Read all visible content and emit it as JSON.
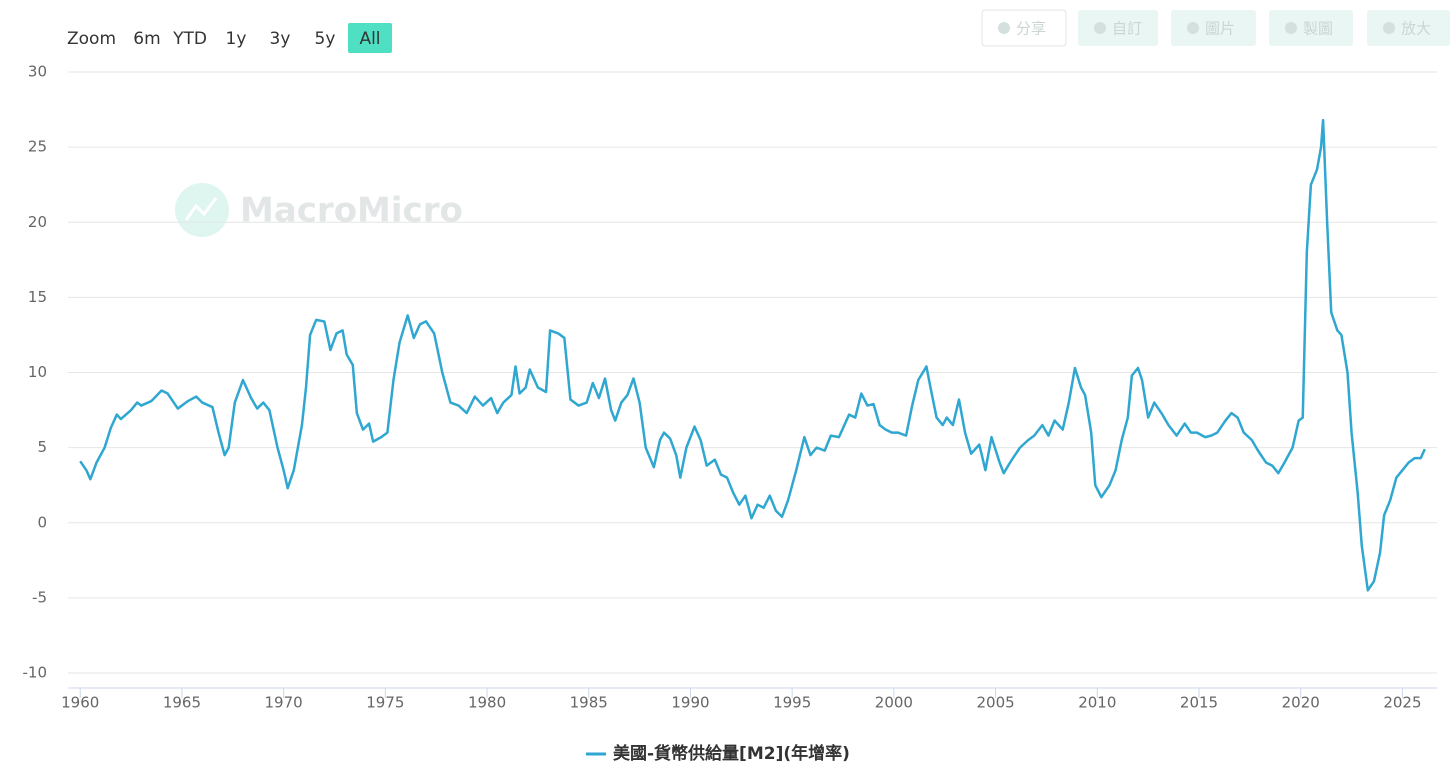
{
  "zoom": {
    "label": "Zoom",
    "buttons": [
      "6m",
      "YTD",
      "1y",
      "3y",
      "5y",
      "All"
    ],
    "selected": 5
  },
  "toolbar": [
    "分享",
    "自訂",
    "圖片",
    "製圖",
    "放大"
  ],
  "watermark": "MacroMicro",
  "chart_data": {
    "type": "line",
    "x": [
      1960.0,
      1960.3,
      1960.5,
      1960.8,
      1961.2,
      1961.5,
      1961.8,
      1962.0,
      1962.5,
      1962.8,
      1963.0,
      1963.5,
      1964.0,
      1964.3,
      1964.8,
      1965.3,
      1965.7,
      1966.0,
      1966.5,
      1966.8,
      1967.1,
      1967.3,
      1967.6,
      1968.0,
      1968.4,
      1968.7,
      1969.0,
      1969.3,
      1969.7,
      1970.0,
      1970.2,
      1970.5,
      1970.9,
      1971.1,
      1971.3,
      1971.6,
      1972.0,
      1972.3,
      1972.6,
      1972.9,
      1973.1,
      1973.4,
      1973.6,
      1973.9,
      1974.2,
      1974.4,
      1974.8,
      1975.1,
      1975.4,
      1975.7,
      1976.1,
      1976.4,
      1976.7,
      1977.0,
      1977.4,
      1977.8,
      1978.2,
      1978.6,
      1979.0,
      1979.4,
      1979.8,
      1980.2,
      1980.5,
      1980.8,
      1981.2,
      1981.4,
      1981.6,
      1981.9,
      1982.1,
      1982.5,
      1982.9,
      1983.1,
      1983.5,
      1983.8,
      1984.1,
      1984.5,
      1984.9,
      1985.2,
      1985.5,
      1985.8,
      1986.1,
      1986.3,
      1986.6,
      1986.9,
      1987.2,
      1987.5,
      1987.8,
      1988.2,
      1988.5,
      1988.7,
      1989.0,
      1989.3,
      1989.5,
      1989.8,
      1990.2,
      1990.5,
      1990.8,
      1991.2,
      1991.5,
      1991.8,
      1992.1,
      1992.4,
      1992.7,
      1993.0,
      1993.3,
      1993.6,
      1993.9,
      1994.2,
      1994.5,
      1994.8,
      1995.2,
      1995.6,
      1995.9,
      1996.2,
      1996.6,
      1996.9,
      1997.3,
      1997.8,
      1998.1,
      1998.4,
      1998.7,
      1999.0,
      1999.3,
      1999.6,
      1999.9,
      2000.2,
      2000.6,
      2000.9,
      2001.2,
      2001.6,
      2001.8,
      2002.1,
      2002.4,
      2002.6,
      2002.9,
      2003.2,
      2003.5,
      2003.8,
      2004.2,
      2004.5,
      2004.8,
      2005.2,
      2005.4,
      2005.8,
      2006.2,
      2006.6,
      2006.9,
      2007.3,
      2007.6,
      2007.9,
      2008.3,
      2008.6,
      2008.9,
      2009.2,
      2009.4,
      2009.7,
      2009.9,
      2010.2,
      2010.6,
      2010.9,
      2011.2,
      2011.5,
      2011.7,
      2012.0,
      2012.2,
      2012.5,
      2012.8,
      2013.2,
      2013.5,
      2013.9,
      2014.3,
      2014.6,
      2014.9,
      2015.3,
      2015.6,
      2015.9,
      2016.3,
      2016.6,
      2016.9,
      2017.2,
      2017.6,
      2017.9,
      2018.3,
      2018.6,
      2018.9,
      2019.2,
      2019.6,
      2019.9,
      2020.1,
      2020.3,
      2020.5,
      2020.8,
      2021.0,
      2021.1,
      2021.3,
      2021.5,
      2021.8,
      2022.0,
      2022.3,
      2022.5,
      2022.8,
      2023.0,
      2023.3,
      2023.6,
      2023.9,
      2024.1,
      2024.4,
      2024.7,
      2025.0,
      2025.3,
      2025.6,
      2025.9,
      2026.1
    ],
    "series": [
      {
        "name": "美國-貨幣供給量[M2](年增率)",
        "color": "#2fa7d0",
        "values": [
          4.1,
          3.5,
          2.9,
          4.0,
          5.0,
          6.3,
          7.2,
          6.9,
          7.5,
          8.0,
          7.8,
          8.1,
          8.8,
          8.6,
          7.6,
          8.1,
          8.4,
          8.0,
          7.7,
          6.0,
          4.5,
          5.0,
          8.0,
          9.5,
          8.3,
          7.6,
          8.0,
          7.5,
          5.0,
          3.5,
          2.3,
          3.5,
          6.5,
          9.0,
          12.5,
          13.5,
          13.4,
          11.5,
          12.6,
          12.8,
          11.2,
          10.5,
          7.3,
          6.2,
          6.6,
          5.4,
          5.7,
          6.0,
          9.5,
          12.0,
          13.8,
          12.3,
          13.2,
          13.4,
          12.6,
          10.0,
          8.0,
          7.8,
          7.3,
          8.4,
          7.8,
          8.3,
          7.3,
          8.0,
          8.5,
          10.4,
          8.6,
          9.0,
          10.2,
          9.0,
          8.7,
          12.8,
          12.6,
          12.3,
          8.2,
          7.8,
          8.0,
          9.3,
          8.3,
          9.6,
          7.5,
          6.8,
          8.0,
          8.5,
          9.6,
          8.0,
          5.0,
          3.7,
          5.5,
          6.0,
          5.6,
          4.5,
          3.0,
          5.0,
          6.4,
          5.5,
          3.8,
          4.2,
          3.2,
          3.0,
          2.0,
          1.2,
          1.8,
          0.3,
          1.2,
          1.0,
          1.8,
          0.8,
          0.4,
          1.5,
          3.5,
          5.7,
          4.5,
          5.0,
          4.8,
          5.8,
          5.7,
          7.2,
          7.0,
          8.6,
          7.8,
          7.9,
          6.5,
          6.2,
          6.0,
          6.0,
          5.8,
          7.8,
          9.5,
          10.4,
          9.0,
          7.0,
          6.5,
          7.0,
          6.5,
          8.2,
          6.0,
          4.6,
          5.2,
          3.5,
          5.7,
          4.0,
          3.3,
          4.2,
          5.0,
          5.5,
          5.8,
          6.5,
          5.8,
          6.8,
          6.2,
          8.0,
          10.3,
          9.0,
          8.5,
          6.0,
          2.5,
          1.7,
          2.5,
          3.5,
          5.5,
          7.0,
          9.8,
          10.3,
          9.5,
          7.0,
          8.0,
          7.2,
          6.5,
          5.8,
          6.6,
          6.0,
          6.0,
          5.7,
          5.8,
          6.0,
          6.8,
          7.3,
          7.0,
          6.0,
          5.5,
          4.8,
          4.0,
          3.8,
          3.3,
          4.0,
          5.0,
          6.8,
          7.0,
          18.0,
          22.5,
          23.5,
          25.0,
          26.8,
          20.0,
          14.0,
          12.8,
          12.5,
          10.0,
          6.0,
          2.0,
          -1.5,
          -4.5,
          -3.9,
          -2.0,
          0.5,
          1.5,
          3.0,
          3.5,
          4.0,
          4.3,
          4.3,
          4.9
        ]
      }
    ],
    "xlim": [
      1959.4,
      2026.7
    ],
    "xticks": [
      1960,
      1965,
      1970,
      1975,
      1980,
      1985,
      1990,
      1995,
      2000,
      2005,
      2010,
      2015,
      2020,
      2025
    ],
    "ylim": [
      -10,
      30
    ],
    "yticks": [
      -10,
      -5,
      0,
      5,
      10,
      15,
      20,
      25,
      30
    ],
    "grid": true
  }
}
